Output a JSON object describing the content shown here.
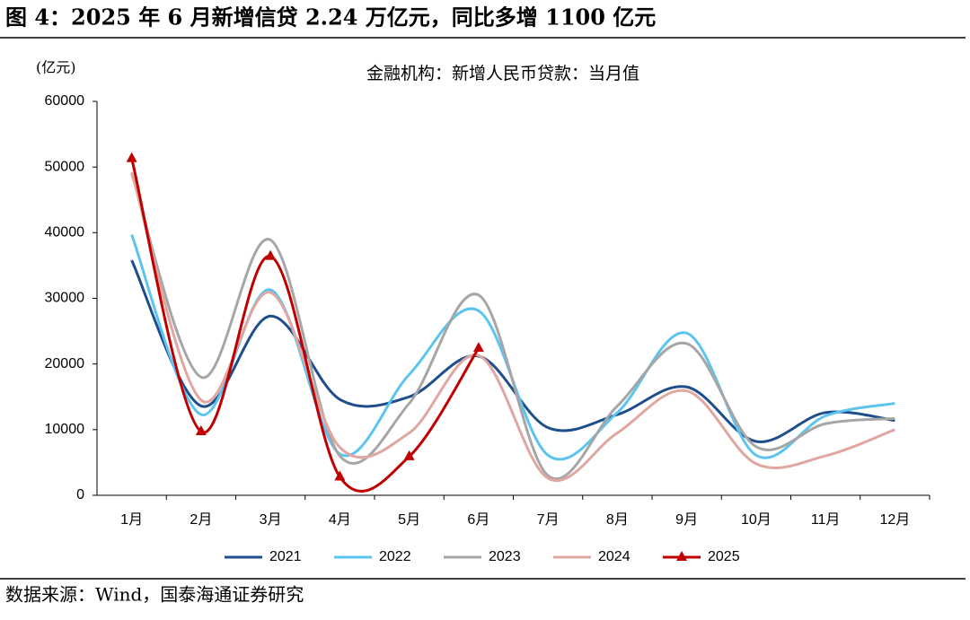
{
  "header": {
    "title": "图 4：2025 年 6 月新增信贷 2.24 万亿元，同比多增 1100 亿元"
  },
  "chart_data": {
    "type": "line",
    "title": "金融机构：新增人民币贷款：当月值",
    "y_label": "(亿元)",
    "categories": [
      "1月",
      "2月",
      "3月",
      "4月",
      "5月",
      "6月",
      "7月",
      "8月",
      "9月",
      "10月",
      "11月",
      "12月"
    ],
    "series": [
      {
        "name": "2021",
        "color": "#1f4e8c",
        "values": [
          35800,
          13600,
          27300,
          14600,
          15000,
          21200,
          10300,
          12300,
          16500,
          8200,
          12600,
          11400
        ]
      },
      {
        "name": "2022",
        "color": "#5bc4f0",
        "values": [
          39700,
          12300,
          31300,
          6300,
          18400,
          28100,
          6100,
          12600,
          24700,
          6100,
          12100,
          14000
        ]
      },
      {
        "name": "2023",
        "color": "#a6a6a6",
        "values": [
          49000,
          18000,
          38900,
          6000,
          14000,
          30500,
          3000,
          13600,
          23100,
          7400,
          10900,
          11700
        ]
      },
      {
        "name": "2024",
        "color": "#e0a6a0",
        "values": [
          49200,
          14500,
          30900,
          7300,
          9500,
          21300,
          2600,
          9500,
          15900,
          4800,
          6000,
          10000
        ]
      },
      {
        "name": "2025",
        "color": "#c00000",
        "marker": "triangle",
        "values": [
          51300,
          9700,
          36400,
          2800,
          5900,
          22400,
          null,
          null,
          null,
          null,
          null,
          null
        ]
      }
    ],
    "ylim": [
      0,
      60000
    ],
    "yticks": [
      0,
      10000,
      20000,
      30000,
      40000,
      50000,
      60000
    ],
    "grid": false,
    "legend": "bottom"
  },
  "footer": {
    "source": "数据来源：Wind，国泰海通证券研究"
  }
}
